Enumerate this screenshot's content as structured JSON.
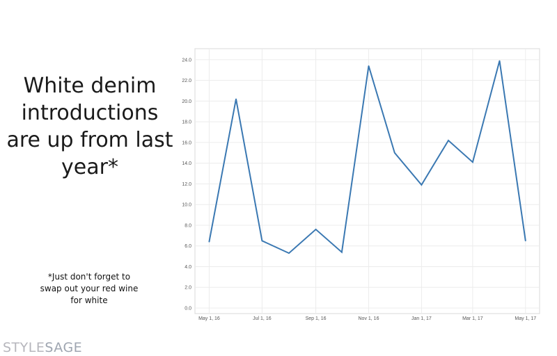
{
  "headline": "White denim introductions are up from last year*",
  "footnote": {
    "line1": "*Just don't forget to",
    "line2": "swap out your red wine",
    "line3": "for white"
  },
  "logo": {
    "part1": "STYLE",
    "part2": "SAGE"
  },
  "chart_data": {
    "type": "line",
    "title": "",
    "xlabel": "",
    "ylabel": "",
    "grid": true,
    "line_color": "#3a78b2",
    "ylim": [
      0,
      24.8
    ],
    "xlim": [
      "2016-04-21",
      "2017-05-10"
    ],
    "yticks": [
      0,
      2,
      4,
      6,
      8,
      10,
      12,
      14,
      16,
      18,
      20,
      22,
      24
    ],
    "ytick_labels": [
      "0.0",
      "2.0",
      "4.0",
      "6.0",
      "8.0",
      "10.0",
      "12.0",
      "14.0",
      "16.0",
      "18.0",
      "20.0",
      "22.0",
      "24.0"
    ],
    "xticks": [
      "2016-05-01",
      "2016-07-01",
      "2016-09-01",
      "2016-11-01",
      "2017-01-01",
      "2017-03-01",
      "2017-05-01"
    ],
    "xtick_labels": [
      "May 1, 16",
      "Jul 1, 16",
      "Sep 1, 16",
      "Nov 1, 16",
      "Jan 1, 17",
      "Mar 1, 17",
      "May 1, 17"
    ],
    "x": [
      "2016-05-01",
      "2016-06-01",
      "2016-07-01",
      "2016-08-01",
      "2016-09-01",
      "2016-10-01",
      "2016-11-01",
      "2016-12-01",
      "2017-01-01",
      "2017-02-01",
      "2017-03-01",
      "2017-04-01",
      "2017-05-01"
    ],
    "y": [
      6.4,
      20.2,
      6.5,
      5.3,
      7.6,
      5.4,
      23.4,
      15.0,
      11.9,
      16.2,
      14.1,
      23.9,
      6.5
    ]
  }
}
